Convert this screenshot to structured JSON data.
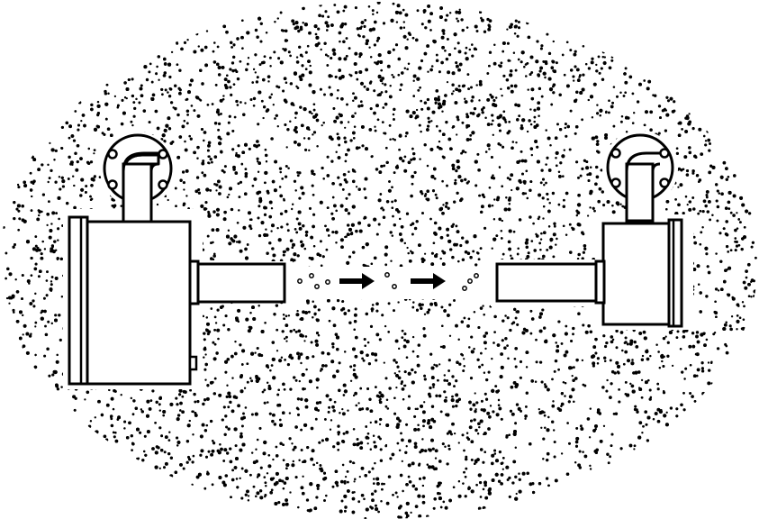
{
  "diagram": {
    "background_color": "#ffffff",
    "stroke_color": "#000000",
    "field": {
      "description_icon": "stippled-ellipse",
      "dot_density": "dense"
    },
    "devices": [
      {
        "id": "left-device",
        "role": "emitter",
        "icon": "pipe-elbow-with-flange"
      },
      {
        "id": "right-device",
        "role": "receiver",
        "icon": "pipe-elbow-with-flange"
      }
    ],
    "flow": {
      "direction": "left-to-right",
      "arrow_count": 2,
      "particle_count": 9,
      "arrow_icon": "right-arrow-icon"
    }
  }
}
